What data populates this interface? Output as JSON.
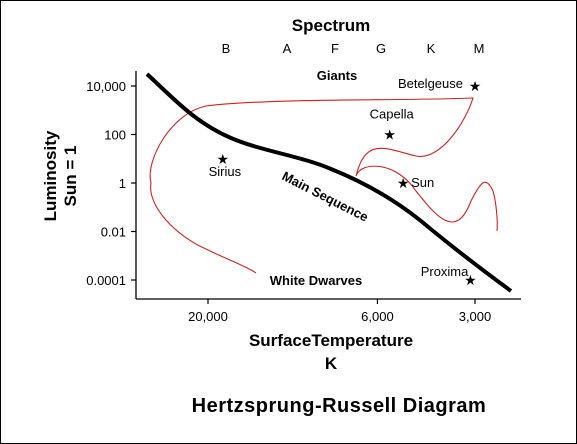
{
  "chart_data": {
    "type": "scatter",
    "title": "Hertzsprung-Russell Diagram",
    "top_axis_label": "Spectrum",
    "spectral_classes": [
      "B",
      "A",
      "F",
      "G",
      "K",
      "M"
    ],
    "xlabel_line1": "SurfaceTemperature",
    "xlabel_line2": "K",
    "ylabel_line1": "Luminosity",
    "ylabel_line2": "Sun = 1",
    "x_ticks": [
      "20,000",
      "6,000",
      "3,000"
    ],
    "y_ticks": [
      "10,000",
      "100",
      "1",
      "0.01",
      "0.0001"
    ],
    "y_tick_values": [
      10000,
      100,
      1,
      0.01,
      0.0001
    ],
    "y_scale": "log",
    "x_axis_reversed": true,
    "regions": [
      "Giants",
      "Main Sequence",
      "White Dwarves"
    ],
    "stars": [
      {
        "name": "Betelgeuse",
        "temperature": 3000,
        "luminosity": 10000
      },
      {
        "name": "Capella",
        "temperature": 5500,
        "luminosity": 100
      },
      {
        "name": "Sirius",
        "temperature": 18000,
        "luminosity": 10
      },
      {
        "name": "Sun",
        "temperature": 5000,
        "luminosity": 1
      },
      {
        "name": "Proxima",
        "temperature": 3100,
        "luminosity": 0.0001
      }
    ],
    "series_colors": {
      "main_sequence": "#000000",
      "evolutionary_track": "#d62020",
      "axes": "#000000"
    }
  }
}
